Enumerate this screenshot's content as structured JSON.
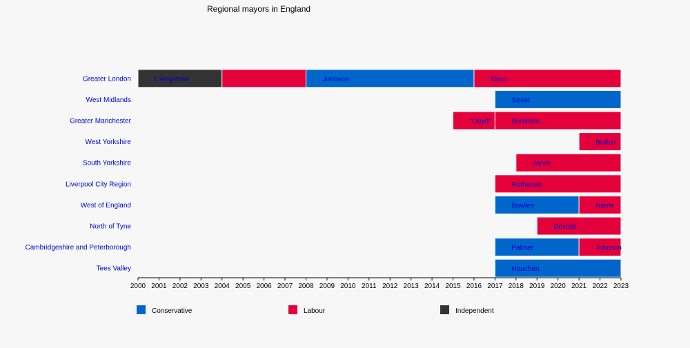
{
  "chart_data": {
    "type": "bar",
    "title": "Regional mayors in England",
    "xlim": [
      2000,
      2023
    ],
    "x_ticks": [
      "2000",
      "2001",
      "2002",
      "2003",
      "2004",
      "2005",
      "2006",
      "2007",
      "2008",
      "2009",
      "2010",
      "2011",
      "2012",
      "2013",
      "2014",
      "2015",
      "2016",
      "2017",
      "2018",
      "2019",
      "2020",
      "2021",
      "2022",
      "2023"
    ],
    "categories": [
      "Greater London",
      "West Midlands",
      "Greater Manchester",
      "West Yorkshire",
      "South Yorkshire",
      "Liverpool City Region",
      "West of England",
      "North of Tyne",
      "Cambridgeshire and Peterborough",
      "Tees Valley"
    ],
    "parties": [
      {
        "name": "Conservative",
        "color": "#0066cc"
      },
      {
        "name": "Labour",
        "color": "#e4003b"
      },
      {
        "name": "Independent",
        "color": "#333333"
      }
    ],
    "bars": [
      {
        "row": 0,
        "start": 2000,
        "end": 2004,
        "party": "Independent",
        "label": "Livingstone"
      },
      {
        "row": 0,
        "start": 2004,
        "end": 2008,
        "party": "Labour",
        "label": ""
      },
      {
        "row": 0,
        "start": 2008,
        "end": 2016,
        "party": "Conservative",
        "label": "Johnson"
      },
      {
        "row": 0,
        "start": 2016,
        "end": 2023,
        "party": "Labour",
        "label": "Khan"
      },
      {
        "row": 1,
        "start": 2017,
        "end": 2023,
        "party": "Conservative",
        "label": "Street"
      },
      {
        "row": 2,
        "start": 2015,
        "end": 2017,
        "party": "Labour",
        "label": "\"Lloyd\""
      },
      {
        "row": 2,
        "start": 2017,
        "end": 2023,
        "party": "Labour",
        "label": "Burnham"
      },
      {
        "row": 3,
        "start": 2021,
        "end": 2023,
        "party": "Labour",
        "label": "Brabin"
      },
      {
        "row": 4,
        "start": 2018,
        "end": 2023,
        "party": "Labour",
        "label": "Jarvis"
      },
      {
        "row": 5,
        "start": 2017,
        "end": 2023,
        "party": "Labour",
        "label": "Rotheram"
      },
      {
        "row": 6,
        "start": 2017,
        "end": 2021,
        "party": "Conservative",
        "label": "Bowles"
      },
      {
        "row": 6,
        "start": 2021,
        "end": 2023,
        "party": "Labour",
        "label": "Norris"
      },
      {
        "row": 7,
        "start": 2019,
        "end": 2023,
        "party": "Labour",
        "label": "Driscoll"
      },
      {
        "row": 8,
        "start": 2017,
        "end": 2021,
        "party": "Conservative",
        "label": "Palmer"
      },
      {
        "row": 8,
        "start": 2021,
        "end": 2023,
        "party": "Labour",
        "label": "Johnson"
      },
      {
        "row": 9,
        "start": 2017,
        "end": 2023,
        "party": "Conservative",
        "label": "Houchen"
      }
    ],
    "legend": [
      "Conservative",
      "Labour",
      "Independent"
    ]
  }
}
